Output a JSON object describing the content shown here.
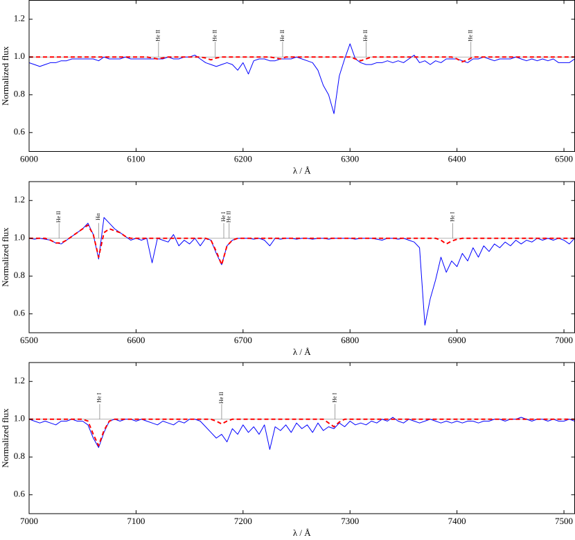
{
  "chart_data": [
    {
      "type": "line",
      "xlabel": "λ / Å",
      "ylabel": "Normalized flux",
      "xlim": [
        6000,
        6510
      ],
      "ylim": [
        0.5,
        1.3
      ],
      "xticks": [
        6000,
        6100,
        6200,
        6300,
        6400,
        6500
      ],
      "yticks": [
        0.6,
        0.8,
        {
          "value": 1,
          "label": "1.0"
        },
        1.2
      ],
      "reference_line": 1,
      "x": [
        6000,
        6005,
        6010,
        6015,
        6020,
        6025,
        6030,
        6035,
        6040,
        6045,
        6050,
        6055,
        6060,
        6065,
        6070,
        6075,
        6080,
        6085,
        6090,
        6095,
        6100,
        6105,
        6110,
        6115,
        6120,
        6125,
        6130,
        6135,
        6140,
        6145,
        6150,
        6155,
        6160,
        6165,
        6170,
        6175,
        6180,
        6185,
        6190,
        6195,
        6200,
        6205,
        6210,
        6215,
        6220,
        6225,
        6230,
        6235,
        6240,
        6245,
        6250,
        6255,
        6260,
        6265,
        6270,
        6275,
        6280,
        6285,
        6290,
        6295,
        6300,
        6305,
        6310,
        6315,
        6320,
        6325,
        6330,
        6335,
        6340,
        6345,
        6350,
        6355,
        6360,
        6365,
        6370,
        6375,
        6380,
        6385,
        6390,
        6395,
        6400,
        6405,
        6410,
        6415,
        6420,
        6425,
        6430,
        6435,
        6440,
        6445,
        6450,
        6455,
        6460,
        6465,
        6470,
        6475,
        6480,
        6485,
        6490,
        6495,
        6500,
        6505,
        6510
      ],
      "series": [
        {
          "color": "#0000ff",
          "values": [
            0.97,
            0.96,
            0.95,
            0.96,
            0.97,
            0.97,
            0.98,
            0.98,
            0.99,
            0.99,
            0.99,
            0.99,
            0.99,
            0.98,
            1.0,
            0.99,
            0.99,
            0.99,
            1.0,
            0.99,
            0.99,
            0.99,
            0.99,
            0.99,
            0.99,
            0.99,
            1.0,
            0.99,
            0.99,
            1.0,
            1.0,
            1.01,
            0.99,
            0.97,
            0.96,
            0.95,
            0.96,
            0.97,
            0.96,
            0.93,
            0.97,
            0.91,
            0.98,
            0.99,
            0.99,
            0.98,
            0.98,
            0.99,
            0.99,
            0.99,
            1.0,
            0.99,
            0.98,
            0.97,
            0.93,
            0.85,
            0.8,
            0.7,
            0.9,
            0.99,
            1.07,
            0.99,
            0.97,
            0.96,
            0.96,
            0.97,
            0.97,
            0.98,
            0.97,
            0.98,
            0.97,
            0.99,
            1.01,
            0.97,
            0.98,
            0.96,
            0.98,
            0.97,
            0.99,
            0.99,
            0.99,
            0.98,
            0.97,
            0.99,
            0.99,
            1.0,
            0.99,
            0.98,
            0.99,
            0.99,
            0.99,
            1.0,
            0.99,
            0.98,
            0.99,
            0.98,
            0.99,
            0.98,
            0.99,
            0.97,
            0.97,
            0.97,
            0.99
          ]
        },
        {
          "color": "#ff0000",
          "dash": true,
          "values": [
            1,
            1,
            1,
            1,
            1,
            1,
            1,
            1,
            1,
            1,
            1,
            1,
            1,
            1,
            1,
            1,
            1,
            1,
            1,
            1,
            1,
            1,
            1,
            0.995,
            0.99,
            0.995,
            1,
            1,
            1,
            1,
            1,
            1,
            1,
            0.995,
            0.985,
            0.995,
            1,
            1,
            1,
            1,
            1,
            1,
            1,
            1,
            1,
            1,
            0.995,
            0.99,
            1,
            1,
            1,
            1,
            1,
            1,
            1,
            1,
            1,
            1,
            1,
            1,
            1,
            0.99,
            0.98,
            0.99,
            1,
            1,
            1,
            1,
            1,
            1,
            1,
            1,
            1,
            1,
            1,
            1,
            1,
            1,
            1,
            1,
            0.99,
            0.975,
            0.985,
            1,
            1,
            1,
            1,
            1,
            1,
            1,
            1,
            1,
            1,
            1,
            1,
            1,
            1,
            1,
            1,
            1,
            1,
            1,
            1
          ]
        }
      ],
      "annotations": [
        {
          "text": "He II",
          "x": 6121
        },
        {
          "text": "He II",
          "x": 6174
        },
        {
          "text": "He II",
          "x": 6237
        },
        {
          "text": "He II",
          "x": 6315
        },
        {
          "text": "He II",
          "x": 6413
        }
      ]
    },
    {
      "type": "line",
      "xlabel": "λ / Å",
      "ylabel": "Normalized flux",
      "xlim": [
        6500,
        7010
      ],
      "ylim": [
        0.5,
        1.3
      ],
      "xticks": [
        6500,
        6600,
        6700,
        6800,
        6900,
        7000
      ],
      "yticks": [
        0.6,
        0.8,
        {
          "value": 1,
          "label": "1.0"
        },
        1.2
      ],
      "reference_line": 1,
      "x": [
        6500,
        6505,
        6510,
        6515,
        6520,
        6525,
        6530,
        6535,
        6540,
        6545,
        6550,
        6555,
        6560,
        6565,
        6570,
        6575,
        6580,
        6585,
        6590,
        6595,
        6600,
        6605,
        6610,
        6615,
        6620,
        6625,
        6630,
        6635,
        6640,
        6645,
        6650,
        6655,
        6660,
        6665,
        6670,
        6675,
        6680,
        6685,
        6690,
        6695,
        6700,
        6705,
        6710,
        6715,
        6720,
        6725,
        6730,
        6735,
        6740,
        6745,
        6750,
        6755,
        6760,
        6765,
        6770,
        6775,
        6780,
        6785,
        6790,
        6795,
        6800,
        6805,
        6810,
        6815,
        6820,
        6825,
        6830,
        6835,
        6840,
        6845,
        6850,
        6855,
        6860,
        6865,
        6870,
        6875,
        6880,
        6885,
        6890,
        6895,
        6900,
        6905,
        6910,
        6915,
        6920,
        6925,
        6930,
        6935,
        6940,
        6945,
        6950,
        6955,
        6960,
        6965,
        6970,
        6975,
        6980,
        6985,
        6990,
        6995,
        7000,
        7005,
        7010
      ],
      "series": [
        {
          "color": "#0000ff",
          "values": [
            1.0,
            0.995,
            1.0,
            0.995,
            0.99,
            0.975,
            0.97,
            0.99,
            1.01,
            1.03,
            1.05,
            1.08,
            1.02,
            0.89,
            1.11,
            1.08,
            1.05,
            1.03,
            1.01,
            0.99,
            1.0,
            0.99,
            1.0,
            0.87,
            1.0,
            0.99,
            0.98,
            1.02,
            0.96,
            0.99,
            0.97,
            1.0,
            0.96,
            1.0,
            0.99,
            0.92,
            0.86,
            0.96,
            0.99,
            1.0,
            1.0,
            1.0,
            0.995,
            1.0,
            0.99,
            0.96,
            1.0,
            0.995,
            1.0,
            1.0,
            0.995,
            1.0,
            1.0,
            0.995,
            1.0,
            1.0,
            0.995,
            1.0,
            1.0,
            1.0,
            1.0,
            0.995,
            1.0,
            1.0,
            1.0,
            0.995,
            0.99,
            1.0,
            1.0,
            0.995,
            1.0,
            0.99,
            0.98,
            0.95,
            0.54,
            0.68,
            0.78,
            0.9,
            0.82,
            0.88,
            0.85,
            0.92,
            0.88,
            0.95,
            0.9,
            0.96,
            0.93,
            0.97,
            0.95,
            0.98,
            0.96,
            0.99,
            0.97,
            0.99,
            0.98,
            1.0,
            0.99,
            1.0,
            0.99,
            1.0,
            0.99,
            0.97,
            1.0
          ]
        },
        {
          "color": "#ff0000",
          "dash": true,
          "values": [
            1,
            1,
            1,
            1,
            0.99,
            0.975,
            0.975,
            0.99,
            1.01,
            1.03,
            1.05,
            1.07,
            1.02,
            0.9,
            1.03,
            1.05,
            1.04,
            1.03,
            1.01,
            1,
            1,
            1,
            1,
            1,
            1,
            1,
            1,
            1,
            1,
            1,
            1,
            1,
            1,
            1,
            0.99,
            0.93,
            0.86,
            0.96,
            0.99,
            1,
            1,
            1,
            1,
            1,
            1,
            1,
            1,
            1,
            1,
            1,
            1,
            1,
            1,
            1,
            1,
            1,
            1,
            1,
            1,
            1,
            1,
            1,
            1,
            1,
            1,
            1,
            1,
            1,
            1,
            1,
            1,
            1,
            1,
            1,
            1,
            1,
            1,
            0.99,
            0.97,
            0.985,
            0.995,
            1,
            1,
            1,
            1,
            1,
            1,
            1,
            1,
            1,
            1,
            1,
            1,
            1,
            1,
            1,
            1,
            1,
            1,
            1,
            1,
            1,
            1
          ]
        }
      ],
      "annotations": [
        {
          "text": "He II",
          "x": 6528
        },
        {
          "text": "Hα",
          "x": 6565
        },
        {
          "text": "He I",
          "x": 6682
        },
        {
          "text": "He II",
          "x": 6687
        },
        {
          "text": "He I",
          "x": 6896
        }
      ]
    },
    {
      "type": "line",
      "xlabel": "λ / Å",
      "ylabel": "Normalized flux",
      "xlim": [
        7000,
        7510
      ],
      "ylim": [
        0.5,
        1.3
      ],
      "xticks": [
        7000,
        7100,
        7200,
        7300,
        7400,
        7500
      ],
      "yticks": [
        0.6,
        0.8,
        {
          "value": 1,
          "label": "1.0"
        },
        1.2
      ],
      "reference_line": 1,
      "x": [
        7000,
        7005,
        7010,
        7015,
        7020,
        7025,
        7030,
        7035,
        7040,
        7045,
        7050,
        7055,
        7060,
        7065,
        7070,
        7075,
        7080,
        7085,
        7090,
        7095,
        7100,
        7105,
        7110,
        7115,
        7120,
        7125,
        7130,
        7135,
        7140,
        7145,
        7150,
        7155,
        7160,
        7165,
        7170,
        7175,
        7180,
        7185,
        7190,
        7195,
        7200,
        7205,
        7210,
        7215,
        7220,
        7225,
        7230,
        7235,
        7240,
        7245,
        7250,
        7255,
        7260,
        7265,
        7270,
        7275,
        7280,
        7285,
        7290,
        7295,
        7300,
        7305,
        7310,
        7315,
        7320,
        7325,
        7330,
        7335,
        7340,
        7345,
        7350,
        7355,
        7360,
        7365,
        7370,
        7375,
        7380,
        7385,
        7390,
        7395,
        7400,
        7405,
        7410,
        7415,
        7420,
        7425,
        7430,
        7435,
        7440,
        7445,
        7450,
        7455,
        7460,
        7465,
        7470,
        7475,
        7480,
        7485,
        7490,
        7495,
        7500,
        7505,
        7510
      ],
      "series": [
        {
          "color": "#0000ff",
          "values": [
            1.0,
            0.99,
            0.98,
            0.99,
            0.98,
            0.97,
            0.99,
            0.99,
            1.0,
            0.99,
            0.99,
            0.97,
            0.9,
            0.85,
            0.93,
            0.99,
            1.0,
            0.99,
            1.0,
            1.0,
            0.99,
            1.0,
            0.99,
            0.98,
            0.97,
            0.99,
            0.98,
            0.97,
            0.99,
            0.98,
            1.0,
            1.0,
            0.99,
            0.96,
            0.93,
            0.9,
            0.92,
            0.88,
            0.95,
            0.92,
            0.97,
            0.93,
            0.96,
            0.92,
            0.97,
            0.84,
            0.96,
            0.94,
            0.97,
            0.93,
            0.98,
            0.95,
            0.97,
            0.93,
            0.98,
            0.94,
            0.96,
            0.95,
            0.98,
            0.96,
            0.99,
            0.97,
            0.98,
            0.97,
            0.99,
            0.98,
            1.0,
            0.99,
            1.01,
            0.99,
            0.98,
            1.0,
            0.99,
            0.98,
            0.99,
            1.0,
            0.99,
            0.98,
            0.99,
            0.98,
            0.99,
            0.98,
            0.99,
            0.99,
            0.98,
            0.99,
            0.99,
            1.0,
            1.0,
            0.99,
            1.0,
            1.0,
            1.01,
            1.0,
            0.99,
            1.0,
            1.0,
            0.99,
            1.0,
            0.99,
            0.99,
            1.0,
            0.99
          ]
        },
        {
          "color": "#ff0000",
          "dash": true,
          "values": [
            1,
            1,
            1,
            1,
            1,
            1,
            1,
            1,
            1,
            1,
            1,
            0.99,
            0.92,
            0.86,
            0.94,
            0.99,
            1,
            1,
            1,
            1,
            1,
            1,
            1,
            1,
            1,
            1,
            1,
            1,
            1,
            1,
            1,
            1,
            1,
            1,
            1,
            0.99,
            0.975,
            0.99,
            1,
            1,
            1,
            1,
            1,
            1,
            1,
            1,
            1,
            1,
            1,
            1,
            1,
            1,
            1,
            1,
            1,
            1,
            0.98,
            0.96,
            0.985,
            1,
            1,
            1,
            1,
            1,
            1,
            1,
            1,
            1,
            1,
            1,
            1,
            1,
            1,
            1,
            1,
            1,
            1,
            1,
            1,
            1,
            1,
            1,
            1,
            1,
            1,
            1,
            1,
            1,
            1,
            1,
            1,
            1,
            1,
            1,
            1,
            1,
            1,
            1,
            1,
            1,
            1,
            1,
            1
          ]
        }
      ],
      "annotations": [
        {
          "text": "He I",
          "x": 7066
        },
        {
          "text": "He II",
          "x": 7180
        },
        {
          "text": "He I",
          "x": 7286
        }
      ]
    }
  ]
}
